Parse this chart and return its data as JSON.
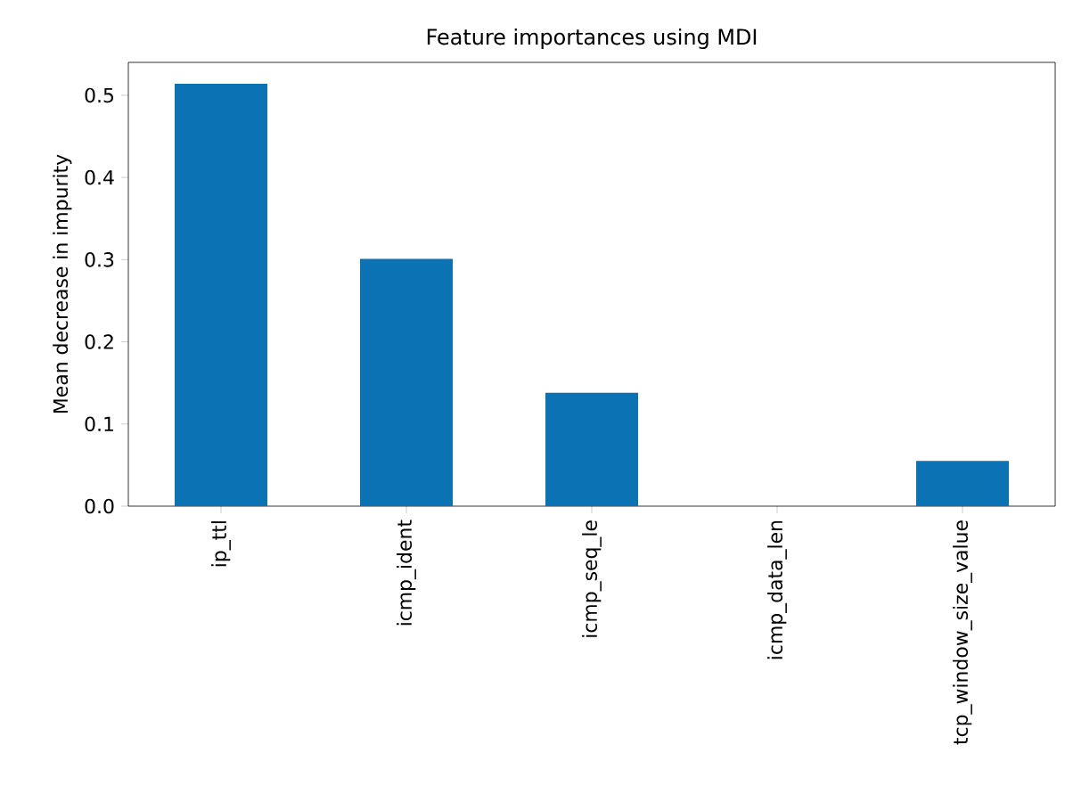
{
  "chart_data": {
    "type": "bar",
    "title": "Feature importances using MDI",
    "ylabel": "Mean decrease in impurity",
    "categories": [
      "ip_ttl",
      "icmp_ident",
      "icmp_seq_le",
      "icmp_data_len",
      "tcp_window_size_value"
    ],
    "values": [
      0.514,
      0.301,
      0.138,
      0,
      0.055
    ],
    "color": "#0b72b4",
    "ylim": [
      0,
      0.54
    ],
    "yticks": [
      {
        "value": 0,
        "label": "0.0"
      },
      0.1,
      0.2,
      0.3,
      0.4,
      0.5
    ],
    "grid": false
  }
}
